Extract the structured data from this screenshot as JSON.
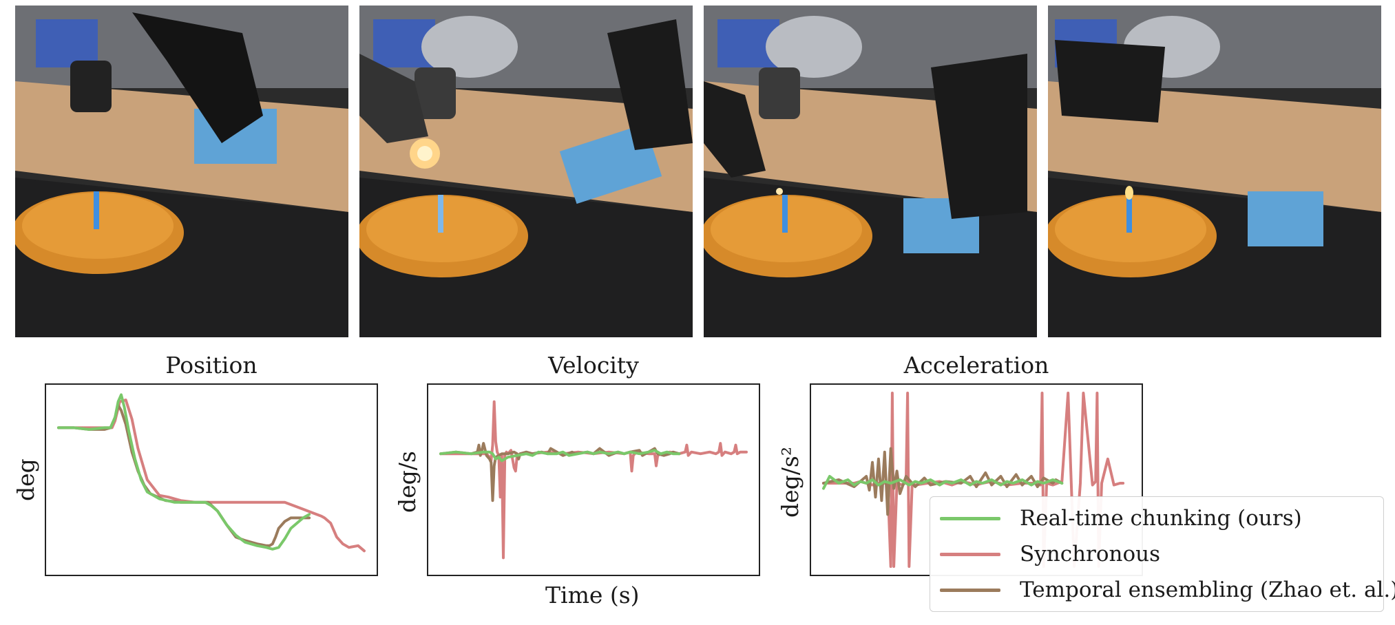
{
  "photos": [
    {
      "name": "scene-frame-1"
    },
    {
      "name": "scene-frame-2"
    },
    {
      "name": "scene-frame-3"
    },
    {
      "name": "scene-frame-4"
    }
  ],
  "colors": {
    "rtc": "#7ac86a",
    "sync": "#d67f7f",
    "temporal": "#9b7b5c"
  },
  "legend": [
    {
      "label": "Real-time chunking (ours)",
      "color_key": "rtc"
    },
    {
      "label": "Synchronous",
      "color_key": "sync"
    },
    {
      "label": "Temporal ensembling (Zhao et. al.)",
      "color_key": "temporal"
    }
  ],
  "chart_data": [
    {
      "type": "line",
      "title": "Position",
      "ylabel": "deg",
      "xlabel": "",
      "xlim": [
        0,
        100
      ],
      "ylim": [
        0,
        100
      ],
      "series": [
        {
          "name": "Synchronous",
          "color_key": "sync",
          "x": [
            0,
            10,
            14,
            16,
            17.5,
            18.5,
            20,
            22,
            24,
            26,
            29,
            33,
            36,
            40,
            45,
            50,
            55,
            60,
            65,
            70,
            74,
            77,
            80,
            83,
            86,
            87,
            89,
            91,
            93,
            95,
            98,
            100
          ],
          "y": [
            80,
            80,
            80,
            80,
            80,
            84,
            95,
            96,
            85,
            68,
            50,
            41,
            40,
            38,
            37,
            37,
            37,
            37,
            37,
            37,
            37,
            35,
            33,
            31,
            29,
            28,
            25,
            17,
            13,
            11,
            12,
            9
          ]
        },
        {
          "name": "Temporal ensembling (Zhao et. al.)",
          "color_key": "temporal",
          "x": [
            0,
            5,
            10,
            15,
            17,
            18.5,
            19.5,
            20.5,
            22,
            24,
            26,
            28,
            30,
            35,
            40,
            45,
            49,
            52,
            55,
            58,
            61,
            65,
            68,
            69,
            70,
            71,
            72,
            74,
            76,
            79,
            82
          ],
          "y": [
            80,
            80,
            79,
            79,
            80,
            86,
            93,
            90,
            82,
            66,
            55,
            47,
            42,
            38,
            37,
            37,
            37,
            32,
            24,
            17,
            15,
            13,
            12,
            12,
            13,
            17,
            22,
            26,
            28,
            28,
            28
          ]
        },
        {
          "name": "Real-time chunking (ours)",
          "color_key": "rtc",
          "x": [
            0,
            5,
            10,
            15,
            17,
            18.5,
            19.5,
            20.5,
            21.5,
            23,
            25,
            27,
            29,
            33,
            38,
            45,
            48,
            50,
            52,
            55,
            58,
            61,
            65,
            68,
            70,
            72,
            74,
            76,
            78,
            80,
            82
          ],
          "y": [
            80,
            80,
            79,
            80,
            80,
            86,
            95,
            99,
            92,
            78,
            62,
            50,
            43,
            39,
            37,
            37,
            37,
            35,
            32,
            24,
            18,
            14,
            12,
            11,
            10,
            11,
            16,
            22,
            25,
            28,
            30
          ]
        }
      ]
    },
    {
      "type": "line",
      "title": "Velocity",
      "ylabel": "deg/s",
      "xlabel": "Time (s)",
      "xlim": [
        0,
        100
      ],
      "ylim": [
        0,
        100
      ],
      "series": [
        {
          "name": "Synchronous",
          "color_key": "sync",
          "x": [
            0,
            10,
            15,
            16,
            16.5,
            17,
            17.5,
            18,
            18.5,
            19,
            19.5,
            20,
            20.5,
            21,
            21.5,
            22,
            23,
            24,
            24.5,
            25,
            26,
            30,
            35,
            40,
            45,
            50,
            55,
            60,
            62,
            62.5,
            63,
            64,
            68,
            70,
            70.5,
            71,
            72,
            75,
            78,
            80,
            80.5,
            81,
            82,
            85,
            88,
            90,
            91,
            91.5,
            92,
            93,
            95,
            96,
            96.5,
            97,
            98,
            100
          ],
          "y": [
            65,
            65,
            65,
            63,
            61,
            70,
            95,
            72,
            66,
            64,
            40,
            64,
            5,
            64,
            66,
            65,
            67,
            57,
            55,
            64,
            65,
            65,
            66,
            65,
            66,
            65,
            66,
            65,
            66,
            55,
            64,
            66,
            65,
            65,
            58,
            64,
            65,
            66,
            65,
            66,
            70,
            64,
            66,
            65,
            66,
            65,
            66,
            71,
            64,
            66,
            65,
            66,
            70,
            65,
            66,
            66
          ]
        },
        {
          "name": "Temporal ensembling (Zhao et. al.)",
          "color_key": "temporal",
          "x": [
            0,
            5,
            10,
            12,
            12.5,
            13,
            13.5,
            14,
            15,
            16,
            16.5,
            17,
            17.5,
            18,
            19,
            20,
            22,
            24,
            25,
            25.5,
            26,
            28,
            30,
            33,
            35,
            36,
            40,
            43,
            44,
            48,
            50,
            52,
            55,
            58,
            60,
            62,
            65,
            66,
            68,
            70,
            71,
            73,
            75,
            76,
            78
          ],
          "y": [
            65,
            66,
            65,
            66,
            70,
            64,
            67,
            71,
            64,
            62,
            60,
            38,
            58,
            63,
            64,
            65,
            65,
            66,
            65,
            62,
            65,
            66,
            65,
            66,
            65,
            68,
            64,
            66,
            65,
            66,
            65,
            68,
            64,
            66,
            65,
            66,
            67,
            64,
            66,
            68,
            65,
            64,
            65,
            66,
            65
          ]
        },
        {
          "name": "Real-time chunking (ours)",
          "color_key": "rtc",
          "x": [
            0,
            5,
            10,
            14,
            16,
            17,
            18,
            19,
            20,
            22,
            25,
            28,
            30,
            32,
            35,
            38,
            40,
            42,
            45,
            48,
            50,
            52,
            55,
            58,
            60,
            62,
            65,
            68,
            70,
            72,
            74,
            76,
            78
          ],
          "y": [
            65,
            66,
            65,
            66,
            66,
            65,
            62,
            63,
            61,
            63,
            64,
            65,
            64,
            66,
            65,
            65,
            66,
            64,
            65,
            66,
            65,
            66,
            65,
            66,
            65,
            66,
            65,
            66,
            67,
            65,
            66,
            65,
            65
          ]
        }
      ]
    },
    {
      "type": "line",
      "title": "Acceleration",
      "ylabel": "deg/s²",
      "xlabel": "",
      "xlim": [
        0,
        100
      ],
      "ylim": [
        0,
        100
      ],
      "series": [
        {
          "name": "Synchronous",
          "color_key": "sync",
          "x": [
            0,
            5,
            10,
            12,
            16,
            18,
            21,
            22,
            22.5,
            23,
            24,
            26,
            27,
            27.5,
            28,
            29,
            30,
            34,
            38,
            42,
            45,
            48,
            50,
            52,
            55,
            60,
            65,
            70,
            71,
            71.5,
            72,
            73,
            75,
            78,
            80,
            82,
            84,
            85,
            88,
            89,
            89.5,
            90,
            91,
            93,
            95,
            97,
            98
          ],
          "y": [
            48,
            48,
            48,
            49,
            47,
            48,
            48,
            0,
            100,
            0,
            48,
            47,
            49,
            100,
            0,
            48,
            47,
            48,
            49,
            47,
            49,
            48,
            47,
            48,
            49,
            47,
            48,
            48,
            47,
            100,
            0,
            48,
            47,
            49,
            100,
            0,
            48,
            100,
            47,
            49,
            100,
            0,
            48,
            62,
            47,
            48,
            48
          ]
        },
        {
          "name": "Temporal ensembling (Zhao et. al.)",
          "color_key": "temporal",
          "x": [
            0,
            5,
            10,
            14,
            15,
            16,
            17,
            18,
            19,
            20,
            21,
            22,
            23,
            24,
            25,
            27,
            30,
            33,
            35,
            40,
            45,
            48,
            50,
            53,
            55,
            58,
            60,
            63,
            65,
            68,
            70,
            72,
            75,
            76,
            78
          ],
          "y": [
            48,
            50,
            46,
            52,
            44,
            60,
            40,
            62,
            38,
            66,
            30,
            68,
            45,
            55,
            42,
            52,
            46,
            51,
            47,
            49,
            48,
            52,
            46,
            54,
            47,
            52,
            46,
            53,
            47,
            52,
            46,
            51,
            48,
            50,
            48
          ]
        },
        {
          "name": "Real-time chunking (ours)",
          "color_key": "rtc",
          "x": [
            0,
            2,
            5,
            8,
            10,
            12,
            14,
            16,
            18,
            20,
            22,
            25,
            28,
            30,
            32,
            35,
            38,
            40,
            42,
            45,
            48,
            50,
            52,
            55,
            58,
            60,
            62,
            65,
            68,
            70,
            72,
            75,
            78
          ],
          "y": [
            45,
            52,
            48,
            50,
            47,
            49,
            48,
            50,
            47,
            49,
            48,
            50,
            47,
            49,
            48,
            50,
            47,
            49,
            48,
            50,
            47,
            49,
            48,
            50,
            47,
            49,
            48,
            50,
            47,
            49,
            48,
            50,
            48
          ]
        }
      ]
    }
  ]
}
